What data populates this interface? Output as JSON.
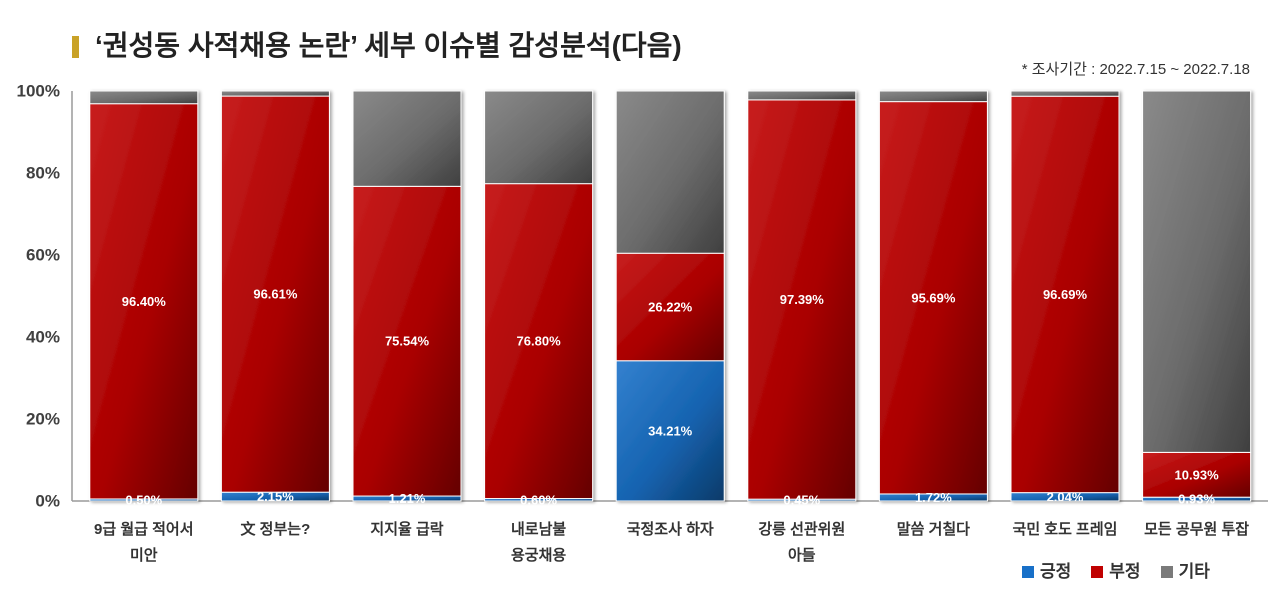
{
  "colors": {
    "title_marker": "#c9a227"
  },
  "chart_data": {
    "type": "bar",
    "stacked": true,
    "normalized_percent": true,
    "title": "‘권성동 사적채용 논란’ 세부 이슈별 감성분석(다음)",
    "subtitle": "* 조사기간 : 2022.7.15 ~ 2022.7.18",
    "xlabel": "",
    "ylabel": "",
    "ylim": [
      0,
      100
    ],
    "yticks": [
      0,
      20,
      40,
      60,
      80,
      100
    ],
    "ytick_labels": [
      "0%",
      "20%",
      "40%",
      "60%",
      "80%",
      "100%"
    ],
    "categories": [
      "9급 월급 적어서\n미안",
      "文 정부는?",
      "지지율 급락",
      "내로남불\n용궁채용",
      "국정조사 하자",
      "강릉 선관위원\n아들",
      "말씀 거칠다",
      "국민 호도 프레임",
      "모든 공무원 투잡"
    ],
    "series": [
      {
        "name": "긍정",
        "color": "#1870c8",
        "values": [
          0.5,
          2.15,
          1.21,
          0.6,
          34.21,
          0.45,
          1.72,
          2.04,
          0.93
        ],
        "labels": [
          "0.50%",
          "2.15%",
          "1.21%",
          "0.60%",
          "34.21%",
          "0.45%",
          "1.72%",
          "2.04%",
          "0.93%"
        ]
      },
      {
        "name": "부정",
        "color": "#c00000",
        "values": [
          96.4,
          96.61,
          75.54,
          76.8,
          26.22,
          97.39,
          95.69,
          96.69,
          10.93
        ],
        "labels": [
          "96.40%",
          "96.61%",
          "75.54%",
          "76.80%",
          "26.22%",
          "97.39%",
          "95.69%",
          "96.69%",
          "10.93%"
        ]
      },
      {
        "name": "기타",
        "color": "#7a7a7a",
        "values": [
          3.1,
          1.24,
          23.25,
          22.6,
          39.57,
          2.16,
          2.59,
          1.27,
          88.14
        ]
      }
    ],
    "grid": false,
    "legend": {
      "position": "bottom-right"
    }
  }
}
